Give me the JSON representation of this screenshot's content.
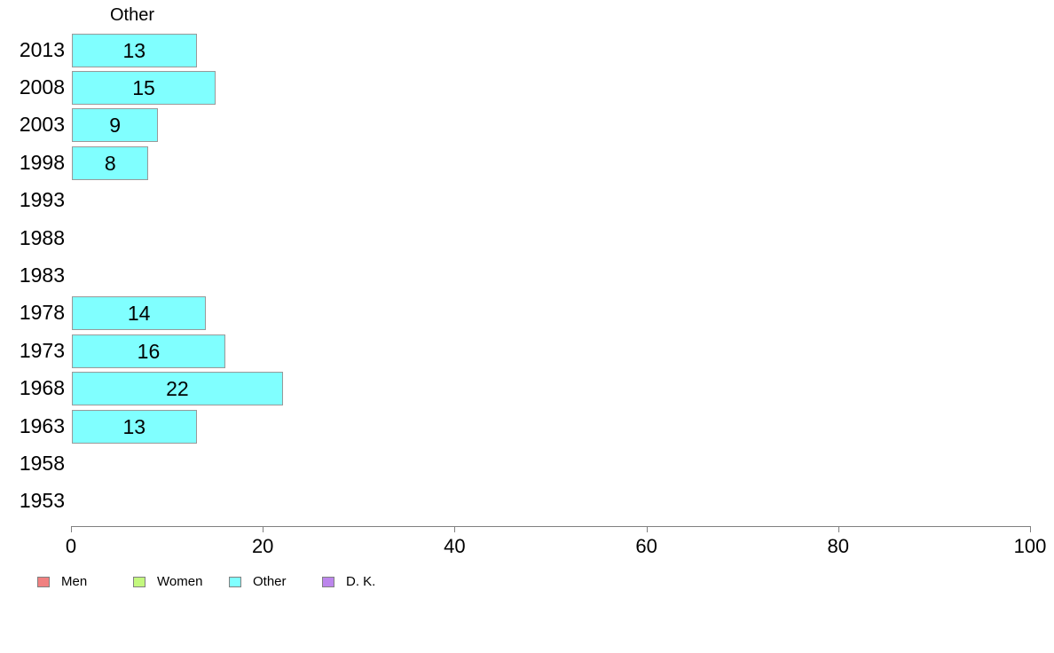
{
  "chart_data": {
    "type": "bar",
    "orientation": "horizontal",
    "title": "Other",
    "categories": [
      "2013",
      "2008",
      "2003",
      "1998",
      "1993",
      "1988",
      "1983",
      "1978",
      "1973",
      "1968",
      "1963",
      "1958",
      "1953"
    ],
    "values": [
      13,
      15,
      9,
      8,
      null,
      null,
      null,
      14,
      16,
      22,
      13,
      null,
      null
    ],
    "value_labels": [
      "13",
      "15",
      "9",
      "8",
      "",
      "",
      "",
      "14",
      "16",
      "22",
      "13",
      "",
      ""
    ],
    "xlabel": "",
    "ylabel": "",
    "xlim": [
      0,
      100
    ],
    "x_ticks": [
      0,
      20,
      40,
      60,
      80,
      100
    ],
    "grid": "off",
    "bar_fill_color": "#80FFFF",
    "bar_border_color": "#999999",
    "axis_color": "#808080",
    "legend_position": "bottom-left",
    "legend": [
      {
        "label": "Men",
        "color": "#F08080"
      },
      {
        "label": "Women",
        "color": "#C3F87E"
      },
      {
        "label": "Other",
        "color": "#80FFFF"
      },
      {
        "label": "D. K.",
        "color": "#BC86EC"
      }
    ]
  }
}
